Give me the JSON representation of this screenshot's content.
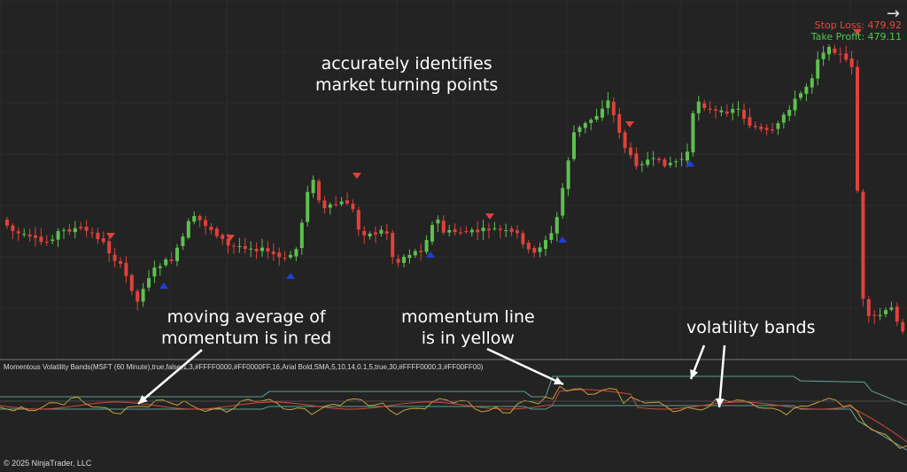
{
  "chart_data": {
    "type": "candlestick",
    "annotations": {
      "turning_points": [
        "accurately identifies",
        "market turning points"
      ],
      "moving_average": [
        "moving average of",
        "momentum is in red"
      ],
      "momentum_line": [
        "momentum line",
        "is in yellow"
      ],
      "volatility_bands": "volatility bands"
    },
    "stop_loss": "Stop Loss: 479.92",
    "take_profit": "Take Profit: 479.11",
    "indicator_label": "Momentous Volatility Bands(MSFT (60 Minute),true,false,1,3,#FFFF0000,#FF0000FF,16,Arial Bold,SMA,5,10,14,0.1,5,true,30,#FFFF0000,3,#FF00FF00)",
    "copyright": "© 2025 NinjaTrader, LLC",
    "colors": {
      "up": "#5ec04f",
      "down": "#e0413a",
      "momentum": "#c8a038",
      "ma": "#d04a3a",
      "bands": "#5a9c92",
      "signal_sell": "#e0413a",
      "signal_buy": "#1f3fd8"
    }
  }
}
